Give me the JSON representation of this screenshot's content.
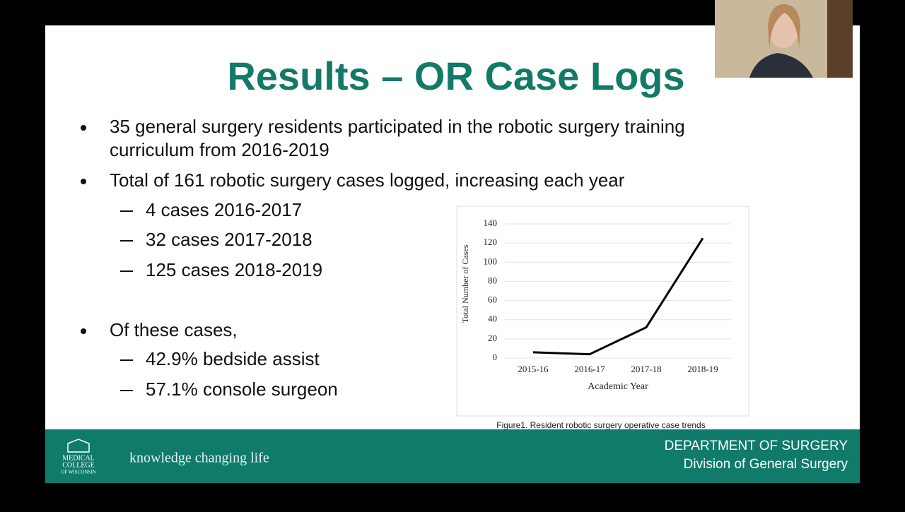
{
  "slide": {
    "title": "Results – OR Case Logs",
    "bullets": [
      {
        "lines": [
          "35 general surgery residents participated in the robotic surgery training",
          "curriculum from 2016-2019"
        ]
      },
      {
        "lines": [
          "Total of 161 robotic surgery cases logged, increasing each year"
        ],
        "sub": [
          "4 cases 2016-2017",
          "32 cases 2017-2018",
          "125 cases 2018-2019"
        ]
      },
      {
        "lines": [
          "Of these cases,"
        ],
        "sub": [
          "42.9% bedside assist",
          "57.1% console surgeon"
        ]
      }
    ],
    "caption": "Figure1. Resident robotic surgery operative case trends"
  },
  "chart_data": {
    "type": "line",
    "x_label": "Academic Year",
    "y_label": "Total Number of Cases",
    "categories": [
      "2015-16",
      "2016-17",
      "2017-18",
      "2018-19"
    ],
    "values": [
      6,
      4,
      32,
      125
    ],
    "color": "#000000",
    "ylim": [
      0,
      140
    ],
    "yticks": [
      0,
      20,
      40,
      60,
      80,
      100,
      120,
      140
    ],
    "grid": true
  },
  "footer": {
    "logo": [
      "MEDICAL",
      "COLLEGE",
      "OF WISCONSIN"
    ],
    "tagline": "knowledge changing life",
    "department": "DEPARTMENT OF SURGERY",
    "division": "Division of General Surgery"
  }
}
